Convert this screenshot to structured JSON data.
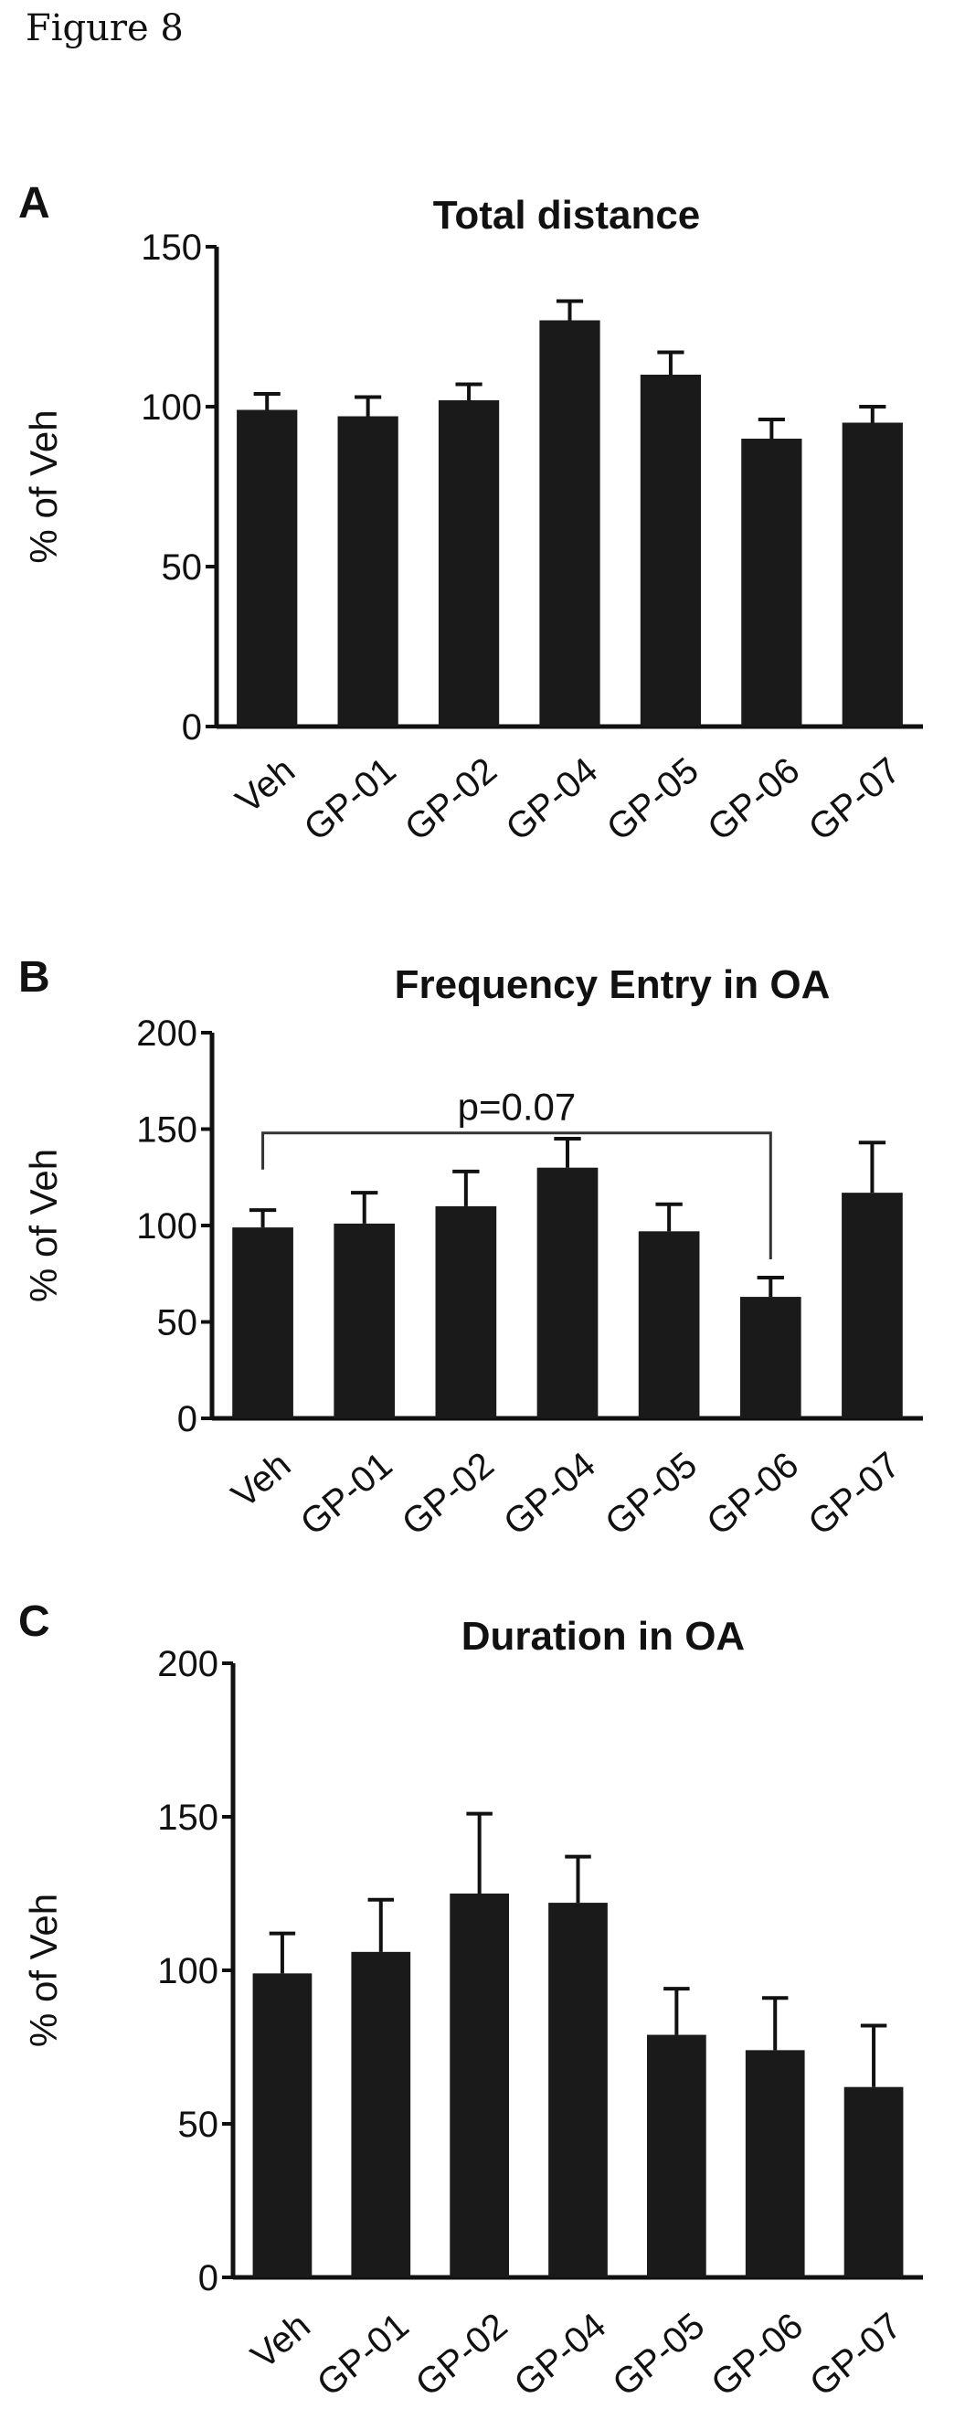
{
  "figure_title": "Figure 8",
  "chart_data": [
    {
      "type": "bar",
      "panel": "A",
      "title": "Total distance",
      "ylabel": "% of Veh",
      "categories": [
        "Veh",
        "GP-01",
        "GP-02",
        "GP-04",
        "GP-05",
        "GP-06",
        "GP-07"
      ],
      "values": [
        99,
        97,
        102,
        127,
        110,
        90,
        95
      ],
      "errors": [
        5,
        6,
        5,
        6,
        7,
        6,
        5
      ],
      "ylim": [
        0,
        150
      ],
      "yticks": [
        0,
        50,
        100,
        150
      ],
      "grid": false,
      "color": "#1a1a1a",
      "annotation": null
    },
    {
      "type": "bar",
      "panel": "B",
      "title": "Frequency Entry in OA",
      "ylabel": "% of Veh",
      "categories": [
        "Veh",
        "GP-01",
        "GP-02",
        "GP-04",
        "GP-05",
        "GP-06",
        "GP-07"
      ],
      "values": [
        99,
        101,
        110,
        130,
        97,
        63,
        117
      ],
      "errors": [
        9,
        16,
        18,
        15,
        14,
        10,
        26
      ],
      "ylim": [
        0,
        200
      ],
      "yticks": [
        0,
        50,
        100,
        150,
        200
      ],
      "grid": false,
      "color": "#1a1a1a",
      "annotation": {
        "text": "p=0.07",
        "from": "Veh",
        "to": "GP-06",
        "level": 148
      }
    },
    {
      "type": "bar",
      "panel": "C",
      "title": "Duration in OA",
      "ylabel": "% of Veh",
      "categories": [
        "Veh",
        "GP-01",
        "GP-02",
        "GP-04",
        "GP-05",
        "GP-06",
        "GP-07"
      ],
      "values": [
        99,
        106,
        125,
        122,
        79,
        74,
        62
      ],
      "errors": [
        13,
        17,
        26,
        15,
        15,
        17,
        20
      ],
      "ylim": [
        0,
        200
      ],
      "yticks": [
        0,
        50,
        100,
        150,
        200
      ],
      "grid": false,
      "color": "#1a1a1a",
      "annotation": null
    }
  ]
}
